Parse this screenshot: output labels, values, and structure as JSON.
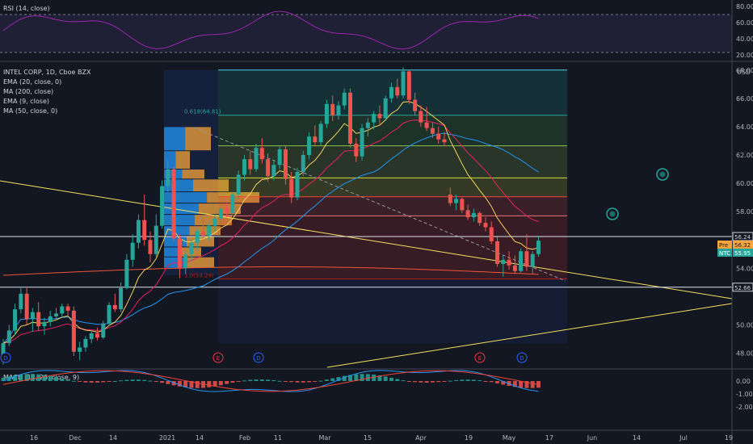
{
  "chart_data": {
    "type": "candlestick",
    "symbol": "INTEL CORP, 1D, Cboe BZX",
    "currency": "USD",
    "indicators_main": [
      "EMA (20, close, 0)",
      "MA (200, close)",
      "EMA (9, close)",
      "MA (50, close, 0)"
    ],
    "rsi": {
      "label": "RSI (14, close)",
      "ticks": [
        "80.00",
        "60.00",
        "40.00",
        "20.00"
      ],
      "bands": [
        70,
        30
      ]
    },
    "macd": {
      "label": "MACD (12, 26, close, 9)",
      "ticks": [
        "0.00",
        "-1.00",
        "-2.00"
      ]
    },
    "price_axis": {
      "ticks": [
        "68.00",
        "66.00",
        "64.00",
        "62.00",
        "60.00",
        "58.00",
        "54.00",
        "50.00",
        "48.00"
      ],
      "ylim": [
        47,
        68.5
      ]
    },
    "x_ticks": [
      "16",
      "Dec",
      "14",
      "2021",
      "14",
      "Feb",
      "11",
      "Mar",
      "15",
      "Apr",
      "19",
      "May",
      "17",
      "Jun",
      "14",
      "Jul",
      "19"
    ],
    "price_labels": [
      {
        "text": "56.24",
        "value": 56.24,
        "color": "#131722",
        "textColor": "#d1d4dc",
        "border": "#d1d4dc"
      },
      {
        "text": "56.32",
        "value": 56.32,
        "color": "#f6a43b",
        "textColor": "#131722",
        "prefix": "Pre"
      },
      {
        "text": "55.95",
        "value": 55.95,
        "color": "#26a69a",
        "textColor": "#ffffff",
        "prefix": "NTC"
      },
      {
        "text": "52.66",
        "value": 52.66,
        "color": "#131722",
        "textColor": "#d1d4dc",
        "border": "#d1d4dc"
      }
    ],
    "fib_levels": [
      {
        "value": 68.0,
        "label": "",
        "color": "#4dd0e1"
      },
      {
        "value": 64.81,
        "label": "0.618(64.81)",
        "color": "#26a69a"
      },
      {
        "value": 62.65,
        "label": "",
        "color": "#8bc34a"
      },
      {
        "value": 60.38,
        "label": "",
        "color": "#cddc39"
      },
      {
        "value": 59.05,
        "label": "",
        "color": "#f44336"
      },
      {
        "value": 57.7,
        "label": "",
        "color": "#e57373"
      },
      {
        "value": 53.24,
        "label": "1.0(53.24)",
        "color": "#b71c1c"
      }
    ],
    "horizontal_lines": [
      56.24,
      52.66
    ],
    "events": [
      {
        "label": "D",
        "color": "#2962ff"
      },
      {
        "label": "E",
        "color": "#f23645"
      },
      {
        "label": "D",
        "color": "#2962ff"
      },
      {
        "label": "E",
        "color": "#f23645"
      },
      {
        "label": "D",
        "color": "#2962ff"
      }
    ],
    "candles": [
      [
        47.5,
        49.0,
        47.2,
        48.7
      ],
      [
        48.7,
        50.0,
        48.5,
        49.6
      ],
      [
        49.6,
        51.5,
        49.3,
        51.1
      ],
      [
        51.1,
        52.6,
        50.8,
        52.2
      ],
      [
        52.2,
        52.6,
        50.0,
        50.4
      ],
      [
        50.4,
        51.2,
        49.5,
        50.9
      ],
      [
        50.9,
        51.6,
        49.6,
        49.9
      ],
      [
        49.9,
        50.5,
        49.3,
        50.2
      ],
      [
        50.2,
        51.0,
        49.9,
        50.6
      ],
      [
        50.6,
        51.2,
        50.4,
        50.8
      ],
      [
        50.8,
        51.5,
        50.5,
        51.3
      ],
      [
        51.3,
        51.5,
        50.6,
        51.0
      ],
      [
        51.0,
        51.3,
        47.8,
        48.1
      ],
      [
        48.1,
        48.8,
        47.5,
        48.4
      ],
      [
        48.4,
        49.2,
        48.1,
        49.0
      ],
      [
        49.0,
        49.6,
        48.7,
        49.4
      ],
      [
        49.4,
        49.8,
        48.9,
        49.1
      ],
      [
        49.1,
        50.3,
        49.0,
        50.1
      ],
      [
        50.1,
        51.6,
        49.9,
        51.4
      ],
      [
        51.4,
        52.2,
        50.9,
        51.1
      ],
      [
        51.1,
        53.0,
        50.9,
        52.6
      ],
      [
        52.6,
        55.0,
        52.5,
        54.6
      ],
      [
        54.6,
        56.4,
        54.1,
        55.8
      ],
      [
        55.8,
        57.8,
        55.4,
        57.4
      ],
      [
        57.4,
        59.2,
        55.6,
        56.0
      ],
      [
        56.0,
        56.6,
        54.4,
        55.0
      ],
      [
        55.0,
        57.8,
        54.8,
        57.0
      ],
      [
        57.0,
        60.2,
        56.8,
        59.8
      ],
      [
        59.8,
        61.6,
        59.4,
        61.0
      ],
      [
        61.0,
        61.2,
        55.9,
        56.1
      ],
      [
        56.1,
        56.4,
        53.3,
        54.0
      ],
      [
        54.0,
        55.3,
        53.6,
        55.0
      ],
      [
        55.0,
        56.0,
        54.5,
        55.8
      ],
      [
        55.8,
        56.8,
        55.3,
        56.6
      ],
      [
        56.6,
        57.4,
        56.1,
        56.3
      ],
      [
        56.3,
        57.2,
        55.9,
        57.0
      ],
      [
        57.0,
        57.8,
        56.6,
        57.5
      ],
      [
        57.5,
        58.5,
        57.2,
        58.2
      ],
      [
        58.2,
        58.6,
        57.6,
        57.9
      ],
      [
        57.9,
        59.4,
        57.7,
        59.2
      ],
      [
        59.2,
        60.9,
        58.9,
        60.6
      ],
      [
        60.6,
        62.0,
        60.2,
        61.7
      ],
      [
        61.7,
        62.3,
        60.6,
        61.0
      ],
      [
        61.0,
        62.8,
        60.8,
        62.5
      ],
      [
        62.5,
        63.2,
        61.4,
        61.7
      ],
      [
        61.7,
        62.1,
        60.1,
        60.5
      ],
      [
        60.5,
        61.6,
        60.2,
        61.3
      ],
      [
        61.3,
        62.6,
        61.0,
        62.4
      ],
      [
        62.4,
        62.7,
        59.9,
        60.3
      ],
      [
        60.3,
        60.8,
        58.6,
        59.0
      ],
      [
        59.0,
        61.1,
        58.8,
        60.8
      ],
      [
        60.8,
        62.3,
        60.5,
        62.0
      ],
      [
        62.0,
        63.6,
        61.7,
        63.3
      ],
      [
        63.3,
        64.1,
        62.6,
        62.9
      ],
      [
        62.9,
        64.4,
        62.7,
        64.2
      ],
      [
        64.2,
        65.9,
        63.9,
        65.6
      ],
      [
        65.6,
        66.2,
        64.4,
        64.8
      ],
      [
        64.8,
        65.8,
        64.5,
        65.5
      ],
      [
        65.5,
        66.7,
        65.2,
        66.4
      ],
      [
        66.4,
        66.7,
        62.5,
        62.8
      ],
      [
        62.8,
        63.2,
        61.5,
        61.9
      ],
      [
        61.9,
        64.2,
        61.6,
        63.9
      ],
      [
        63.9,
        64.6,
        63.3,
        64.3
      ],
      [
        64.3,
        65.1,
        63.8,
        64.9
      ],
      [
        64.9,
        65.5,
        64.1,
        64.6
      ],
      [
        64.6,
        66.2,
        64.4,
        66.0
      ],
      [
        66.0,
        67.1,
        65.7,
        66.8
      ],
      [
        66.8,
        67.4,
        66.0,
        66.2
      ],
      [
        66.2,
        68.2,
        66.0,
        67.9
      ],
      [
        67.9,
        68.0,
        65.6,
        65.9
      ],
      [
        65.9,
        66.4,
        64.8,
        65.1
      ],
      [
        65.1,
        65.5,
        64.0,
        64.3
      ],
      [
        64.3,
        65.4,
        63.7,
        63.9
      ],
      [
        63.9,
        64.3,
        63.2,
        63.5
      ],
      [
        63.5,
        64.0,
        62.8,
        63.1
      ],
      [
        63.1,
        63.6,
        62.6,
        62.9
      ],
      [
        59.2,
        59.7,
        58.4,
        58.6
      ],
      [
        58.6,
        59.2,
        58.1,
        58.9
      ],
      [
        58.9,
        59.0,
        57.9,
        58.1
      ],
      [
        58.1,
        58.5,
        57.4,
        57.6
      ],
      [
        57.6,
        58.2,
        57.3,
        57.9
      ],
      [
        57.9,
        58.0,
        57.0,
        57.2
      ],
      [
        57.2,
        57.6,
        56.6,
        56.9
      ],
      [
        56.9,
        57.3,
        55.7,
        55.9
      ],
      [
        55.9,
        56.2,
        54.1,
        54.3
      ],
      [
        54.3,
        54.9,
        53.4,
        54.6
      ],
      [
        54.6,
        55.2,
        53.9,
        54.2
      ],
      [
        54.2,
        54.9,
        53.6,
        53.8
      ],
      [
        53.8,
        55.4,
        53.7,
        55.2
      ],
      [
        55.2,
        56.4,
        53.8,
        54.1
      ],
      [
        54.1,
        55.2,
        53.6,
        55.0
      ],
      [
        55.0,
        56.2,
        54.8,
        55.95
      ]
    ]
  }
}
